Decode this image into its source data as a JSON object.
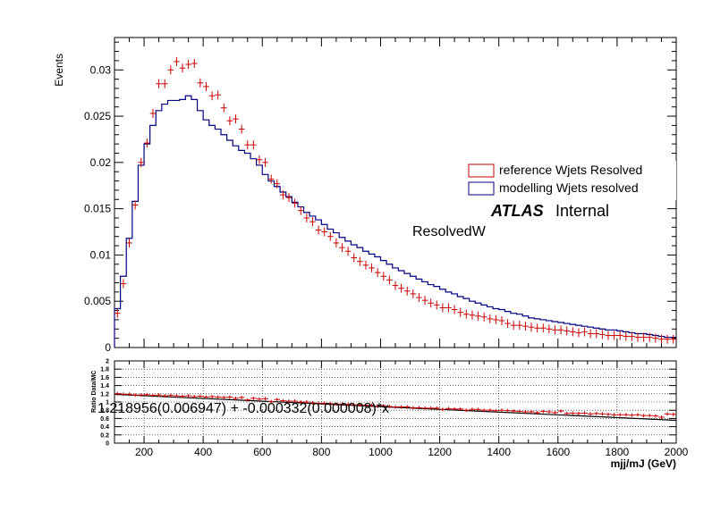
{
  "chart_data": [
    {
      "type": "line",
      "panel": "main",
      "ylabel": "Events",
      "xlim": [
        100,
        2000
      ],
      "ylim": [
        0,
        0.0335
      ],
      "yticks": [
        "0",
        "0.005",
        "0.01",
        "0.015",
        "0.02",
        "0.025",
        "0.03"
      ],
      "legend": [
        "reference Wjets Resolved",
        "modelling Wjets resolved"
      ],
      "atlas_label": "ATLAS",
      "atlas_status": "Internal",
      "region_label": "ResolvedW",
      "series": [
        {
          "name": "reference Wjets Resolved",
          "style": "points-with-errors",
          "color": "#cc0000",
          "x": [
            110,
            130,
            150,
            170,
            190,
            210,
            230,
            250,
            270,
            290,
            310,
            330,
            350,
            370,
            390,
            410,
            430,
            450,
            470,
            490,
            510,
            530,
            550,
            570,
            590,
            610,
            630,
            650,
            670,
            690,
            710,
            730,
            750,
            770,
            790,
            810,
            830,
            850,
            870,
            890,
            910,
            930,
            950,
            970,
            990,
            1010,
            1030,
            1050,
            1070,
            1090,
            1110,
            1130,
            1150,
            1170,
            1190,
            1210,
            1230,
            1250,
            1270,
            1290,
            1310,
            1330,
            1350,
            1370,
            1390,
            1410,
            1430,
            1450,
            1470,
            1490,
            1510,
            1530,
            1550,
            1570,
            1590,
            1610,
            1630,
            1650,
            1670,
            1690,
            1710,
            1730,
            1750,
            1770,
            1790,
            1810,
            1830,
            1850,
            1870,
            1890,
            1910,
            1930,
            1950,
            1970,
            1990
          ],
          "y": [
            0.0037,
            0.0069,
            0.0113,
            0.0154,
            0.02,
            0.0221,
            0.0253,
            0.0285,
            0.0285,
            0.03,
            0.0309,
            0.0302,
            0.0306,
            0.0307,
            0.0286,
            0.0282,
            0.0272,
            0.0273,
            0.0259,
            0.0245,
            0.0247,
            0.0236,
            0.0219,
            0.0219,
            0.0203,
            0.02,
            0.0182,
            0.0177,
            0.0165,
            0.0162,
            0.0156,
            0.0148,
            0.014,
            0.0136,
            0.0127,
            0.0125,
            0.012,
            0.0113,
            0.0108,
            0.0104,
            0.0097,
            0.0093,
            0.0089,
            0.0086,
            0.0081,
            0.0077,
            0.0073,
            0.0067,
            0.0064,
            0.0061,
            0.0058,
            0.0054,
            0.0051,
            0.0048,
            0.0046,
            0.0043,
            0.0043,
            0.0041,
            0.0038,
            0.0036,
            0.0035,
            0.0034,
            0.0033,
            0.0031,
            0.003,
            0.0029,
            0.0026,
            0.0024,
            0.0024,
            0.0023,
            0.0022,
            0.0021,
            0.0021,
            0.002,
            0.0019,
            0.0019,
            0.0018,
            0.0017,
            0.0016,
            0.0017,
            0.0015,
            0.0015,
            0.0014,
            0.0013,
            0.0013,
            0.0013,
            0.0012,
            0.0012,
            0.0011,
            0.0011,
            0.0011,
            0.001,
            0.0009,
            0.0009,
            0.0009
          ]
        },
        {
          "name": "modelling Wjets resolved",
          "style": "histogram-step",
          "color": "#000080",
          "edges": [
            100,
            120,
            140,
            160,
            180,
            200,
            220,
            240,
            260,
            280,
            300,
            320,
            340,
            360,
            380,
            400,
            420,
            440,
            460,
            480,
            500,
            520,
            540,
            560,
            580,
            600,
            620,
            640,
            660,
            680,
            700,
            720,
            740,
            760,
            780,
            800,
            820,
            840,
            860,
            880,
            900,
            920,
            940,
            960,
            980,
            1000,
            1020,
            1040,
            1060,
            1080,
            1100,
            1120,
            1140,
            1160,
            1180,
            1200,
            1220,
            1240,
            1260,
            1280,
            1300,
            1320,
            1340,
            1360,
            1380,
            1400,
            1420,
            1440,
            1460,
            1480,
            1500,
            1520,
            1540,
            1560,
            1580,
            1600,
            1620,
            1640,
            1660,
            1680,
            1700,
            1720,
            1740,
            1760,
            1780,
            1800,
            1820,
            1840,
            1860,
            1880,
            1900,
            1920,
            1940,
            1960,
            1980,
            2000
          ],
          "y": [
            0.0042,
            0.0077,
            0.0118,
            0.0158,
            0.0197,
            0.022,
            0.024,
            0.0256,
            0.0263,
            0.0267,
            0.0267,
            0.0268,
            0.0272,
            0.0268,
            0.0256,
            0.0246,
            0.024,
            0.0236,
            0.023,
            0.0224,
            0.0218,
            0.0213,
            0.021,
            0.0204,
            0.0197,
            0.0187,
            0.018,
            0.0174,
            0.0168,
            0.0163,
            0.0157,
            0.0152,
            0.0146,
            0.0142,
            0.0138,
            0.0133,
            0.0128,
            0.0124,
            0.0119,
            0.0115,
            0.0111,
            0.0108,
            0.0104,
            0.0101,
            0.0098,
            0.0094,
            0.009,
            0.0086,
            0.0083,
            0.008,
            0.0077,
            0.0074,
            0.0071,
            0.0068,
            0.0066,
            0.0063,
            0.006,
            0.0058,
            0.0055,
            0.0053,
            0.005,
            0.0048,
            0.0046,
            0.0044,
            0.0042,
            0.0041,
            0.0039,
            0.0037,
            0.0036,
            0.0034,
            0.0032,
            0.0031,
            0.003,
            0.0029,
            0.0028,
            0.0027,
            0.0026,
            0.0025,
            0.0024,
            0.0023,
            0.0022,
            0.0021,
            0.002,
            0.0019,
            0.0019,
            0.0018,
            0.0017,
            0.0016,
            0.0015,
            0.0015,
            0.0014,
            0.0013,
            0.0012,
            0.0011,
            0.0011
          ]
        }
      ]
    },
    {
      "type": "scatter",
      "panel": "ratio",
      "ylabel": "Ratio Data/MC",
      "xlabel": "mjj/mJ (GeV)",
      "xlim": [
        100,
        2000
      ],
      "ylim": [
        0,
        2
      ],
      "xticks": [
        "200",
        "400",
        "600",
        "800",
        "1000",
        "1200",
        "1400",
        "1600",
        "1800",
        "2000"
      ],
      "yticks": [
        "0",
        "0.2",
        "0.4",
        "0.6",
        "0.8",
        "1",
        "1.2",
        "1.4",
        "1.6",
        "1.8",
        "2"
      ],
      "grid": true,
      "fit_label": "1.218956(0.006947) + -0.000332(0.000008)*x",
      "fit": {
        "intercept": 1.218956,
        "slope": -0.000332
      },
      "series": [
        {
          "name": "ratio",
          "color": "#cc0000",
          "x": [
            110,
            130,
            150,
            170,
            190,
            210,
            230,
            250,
            270,
            290,
            310,
            330,
            350,
            370,
            390,
            410,
            430,
            450,
            470,
            490,
            510,
            530,
            550,
            570,
            590,
            610,
            630,
            650,
            670,
            690,
            710,
            730,
            750,
            770,
            790,
            810,
            830,
            850,
            870,
            890,
            910,
            930,
            950,
            970,
            990,
            1010,
            1030,
            1050,
            1070,
            1090,
            1110,
            1130,
            1150,
            1170,
            1190,
            1210,
            1230,
            1250,
            1270,
            1290,
            1310,
            1330,
            1350,
            1370,
            1390,
            1410,
            1430,
            1450,
            1470,
            1490,
            1510,
            1530,
            1550,
            1570,
            1590,
            1610,
            1630,
            1650,
            1670,
            1690,
            1710,
            1730,
            1750,
            1770,
            1790,
            1810,
            1830,
            1850,
            1870,
            1890,
            1910,
            1930,
            1950,
            1970,
            1990
          ],
          "y": [
            1.2,
            1.19,
            1.19,
            1.17,
            1.17,
            1.18,
            1.16,
            1.17,
            1.15,
            1.16,
            1.15,
            1.14,
            1.15,
            1.13,
            1.14,
            1.12,
            1.13,
            1.12,
            1.11,
            1.12,
            1.09,
            1.11,
            1.05,
            1.09,
            1.07,
            1.08,
            1.01,
            1.06,
            1.03,
            1.02,
            1.02,
            1.0,
            1.0,
            0.98,
            0.97,
            0.97,
            0.96,
            0.95,
            0.95,
            0.94,
            0.93,
            0.93,
            0.92,
            0.92,
            0.9,
            0.91,
            0.89,
            0.88,
            0.88,
            0.88,
            0.86,
            0.86,
            0.85,
            0.85,
            0.85,
            0.82,
            0.84,
            0.83,
            0.83,
            0.8,
            0.82,
            0.82,
            0.8,
            0.8,
            0.79,
            0.8,
            0.79,
            0.78,
            0.77,
            0.76,
            0.76,
            0.74,
            0.77,
            0.76,
            0.74,
            0.78,
            0.72,
            0.73,
            0.72,
            0.73,
            0.71,
            0.72,
            0.71,
            0.7,
            0.69,
            0.69,
            0.69,
            0.68,
            0.69,
            0.67,
            0.67,
            0.66,
            0.63,
            0.71,
            0.7
          ]
        }
      ]
    }
  ]
}
